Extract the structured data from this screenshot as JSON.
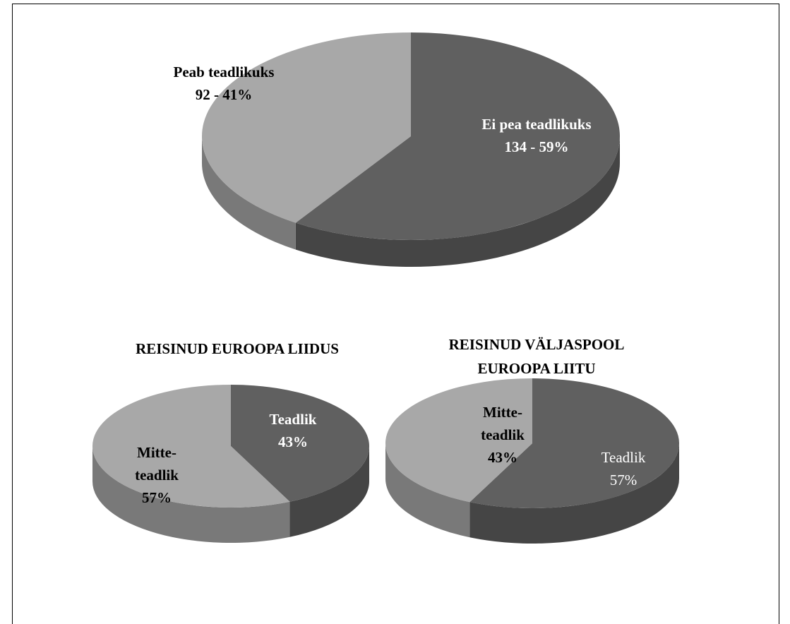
{
  "chart_data": [
    {
      "type": "pie3d",
      "categories": [
        "Ei pea teadlikuks",
        "Peab teadlikuks"
      ],
      "values": [
        134,
        92
      ],
      "value_labels": [
        "134 - 59%",
        "92 - 41%"
      ],
      "colors": [
        "#606060",
        "#a8a8a8"
      ]
    },
    {
      "type": "pie3d",
      "title": "REISINUD EUROOPA LIIDUS",
      "categories": [
        "Teadlik",
        "Mitte-teadlik"
      ],
      "values": [
        43,
        57
      ],
      "value_labels": [
        "43%",
        "57%"
      ],
      "colors": [
        "#606060",
        "#a8a8a8"
      ]
    },
    {
      "type": "pie3d",
      "title": "REISINUD VÄLJASPOOL EUROOPA LIITU",
      "categories": [
        "Teadlik",
        "Mitte-teadlik"
      ],
      "values": [
        57,
        43
      ],
      "value_labels": [
        "57%",
        "43%"
      ],
      "colors": [
        "#606060",
        "#a8a8a8"
      ]
    }
  ]
}
